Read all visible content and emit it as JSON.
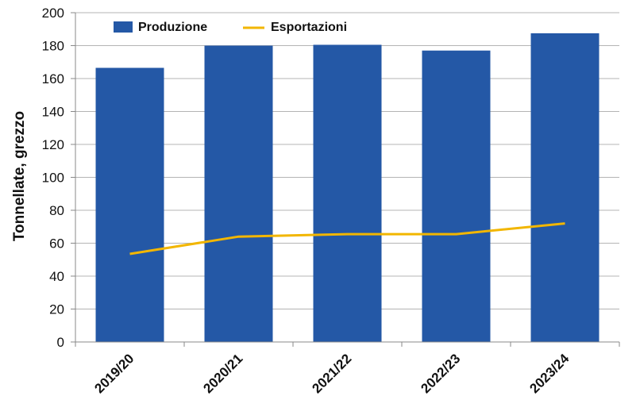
{
  "chart_data": {
    "type": "bar",
    "categories": [
      "2019/20",
      "2020/21",
      "2021/22",
      "2022/23",
      "2023/24"
    ],
    "series": [
      {
        "name": "Produzione",
        "type": "bar",
        "values": [
          166.5,
          180,
          180.5,
          177,
          187.5
        ]
      },
      {
        "name": "Esportazioni",
        "type": "line",
        "values": [
          53.5,
          64,
          65.5,
          65.5,
          72
        ]
      }
    ],
    "ylabel": "Tonnellate, grezzo",
    "xlabel": "",
    "ylim": [
      0,
      200
    ],
    "yticks": [
      0,
      20,
      40,
      60,
      80,
      100,
      120,
      140,
      160,
      180,
      200
    ],
    "grid": true,
    "legend_position": "top-left",
    "colors": {
      "bar": "#2458a6",
      "line": "#f2b600",
      "grid": "#b4b4b4",
      "axis": "#888888"
    }
  }
}
